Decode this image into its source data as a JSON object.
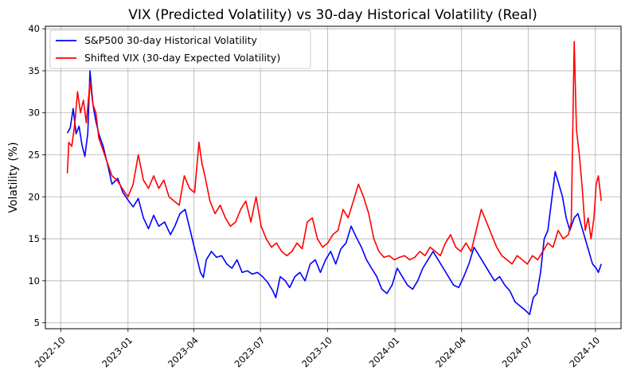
{
  "chart_data": {
    "type": "line",
    "title": "VIX (Predicted Volatility) vs 30-day Historical Volatility (Real)",
    "xlabel": "",
    "ylabel": "Volatility (%)",
    "xlim": [
      "2022-09-10",
      "2024-11-05"
    ],
    "ylim": [
      4.3,
      40.3
    ],
    "grid": true,
    "legend_position": "top-left",
    "x_ticks": [
      "2022-10",
      "2023-01",
      "2023-04",
      "2023-07",
      "2023-10",
      "2024-01",
      "2024-04",
      "2024-07",
      "2024-10"
    ],
    "y_ticks": [
      5,
      10,
      15,
      20,
      25,
      30,
      35,
      40
    ],
    "series": [
      {
        "name": "S&P500 30-day Historical Volatility",
        "color": "#0000ff",
        "points": [
          [
            "2022-10-10",
            27.6
          ],
          [
            "2022-10-14",
            28.2
          ],
          [
            "2022-10-18",
            30.5
          ],
          [
            "2022-10-22",
            27.5
          ],
          [
            "2022-10-26",
            28.4
          ],
          [
            "2022-10-30",
            26.2
          ],
          [
            "2022-11-03",
            24.8
          ],
          [
            "2022-11-07",
            27.6
          ],
          [
            "2022-11-10",
            35.0
          ],
          [
            "2022-11-14",
            31.0
          ],
          [
            "2022-11-18",
            29.0
          ],
          [
            "2022-11-22",
            27.5
          ],
          [
            "2022-11-28",
            26.0
          ],
          [
            "2022-12-05",
            23.5
          ],
          [
            "2022-12-10",
            21.5
          ],
          [
            "2022-12-18",
            22.2
          ],
          [
            "2022-12-25",
            20.5
          ],
          [
            "2023-01-02",
            19.5
          ],
          [
            "2023-01-08",
            18.8
          ],
          [
            "2023-01-15",
            19.8
          ],
          [
            "2023-01-22",
            17.5
          ],
          [
            "2023-01-29",
            16.2
          ],
          [
            "2023-02-05",
            17.8
          ],
          [
            "2023-02-12",
            16.5
          ],
          [
            "2023-02-20",
            17.0
          ],
          [
            "2023-02-28",
            15.5
          ],
          [
            "2023-03-06",
            16.5
          ],
          [
            "2023-03-13",
            18.0
          ],
          [
            "2023-03-20",
            18.5
          ],
          [
            "2023-03-27",
            16.0
          ],
          [
            "2023-04-03",
            13.5
          ],
          [
            "2023-04-10",
            11.0
          ],
          [
            "2023-04-14",
            10.4
          ],
          [
            "2023-04-18",
            12.5
          ],
          [
            "2023-04-25",
            13.5
          ],
          [
            "2023-05-02",
            12.8
          ],
          [
            "2023-05-09",
            13.0
          ],
          [
            "2023-05-16",
            12.0
          ],
          [
            "2023-05-23",
            11.5
          ],
          [
            "2023-05-30",
            12.5
          ],
          [
            "2023-06-06",
            11.0
          ],
          [
            "2023-06-13",
            11.2
          ],
          [
            "2023-06-20",
            10.8
          ],
          [
            "2023-06-27",
            11.0
          ],
          [
            "2023-07-04",
            10.5
          ],
          [
            "2023-07-11",
            9.8
          ],
          [
            "2023-07-18",
            8.8
          ],
          [
            "2023-07-22",
            8.0
          ],
          [
            "2023-07-28",
            10.5
          ],
          [
            "2023-08-04",
            10.0
          ],
          [
            "2023-08-10",
            9.2
          ],
          [
            "2023-08-17",
            10.5
          ],
          [
            "2023-08-24",
            11.0
          ],
          [
            "2023-08-31",
            10.0
          ],
          [
            "2023-09-07",
            12.0
          ],
          [
            "2023-09-14",
            12.5
          ],
          [
            "2023-09-21",
            11.0
          ],
          [
            "2023-09-28",
            12.5
          ],
          [
            "2023-10-05",
            13.5
          ],
          [
            "2023-10-12",
            12.0
          ],
          [
            "2023-10-19",
            13.8
          ],
          [
            "2023-10-26",
            14.5
          ],
          [
            "2023-11-02",
            16.5
          ],
          [
            "2023-11-09",
            15.2
          ],
          [
            "2023-11-16",
            14.0
          ],
          [
            "2023-11-23",
            12.5
          ],
          [
            "2023-11-30",
            11.5
          ],
          [
            "2023-12-07",
            10.5
          ],
          [
            "2023-12-14",
            9.0
          ],
          [
            "2023-12-21",
            8.5
          ],
          [
            "2023-12-28",
            9.5
          ],
          [
            "2024-01-04",
            11.5
          ],
          [
            "2024-01-11",
            10.5
          ],
          [
            "2024-01-18",
            9.5
          ],
          [
            "2024-01-25",
            9.0
          ],
          [
            "2024-02-01",
            10.0
          ],
          [
            "2024-02-08",
            11.5
          ],
          [
            "2024-02-15",
            12.5
          ],
          [
            "2024-02-22",
            13.5
          ],
          [
            "2024-02-29",
            12.5
          ],
          [
            "2024-03-07",
            11.5
          ],
          [
            "2024-03-14",
            10.5
          ],
          [
            "2024-03-21",
            9.5
          ],
          [
            "2024-03-28",
            9.2
          ],
          [
            "2024-04-04",
            10.5
          ],
          [
            "2024-04-11",
            12.0
          ],
          [
            "2024-04-18",
            14.0
          ],
          [
            "2024-04-25",
            13.0
          ],
          [
            "2024-05-02",
            12.0
          ],
          [
            "2024-05-09",
            11.0
          ],
          [
            "2024-05-16",
            10.0
          ],
          [
            "2024-05-23",
            10.5
          ],
          [
            "2024-05-30",
            9.5
          ],
          [
            "2024-06-06",
            8.8
          ],
          [
            "2024-06-13",
            7.5
          ],
          [
            "2024-06-20",
            7.0
          ],
          [
            "2024-06-27",
            6.5
          ],
          [
            "2024-07-03",
            6.0
          ],
          [
            "2024-07-08",
            8.0
          ],
          [
            "2024-07-13",
            8.5
          ],
          [
            "2024-07-18",
            11.0
          ],
          [
            "2024-07-23",
            15.0
          ],
          [
            "2024-07-28",
            16.0
          ],
          [
            "2024-08-02",
            19.5
          ],
          [
            "2024-08-07",
            23.0
          ],
          [
            "2024-08-12",
            21.5
          ],
          [
            "2024-08-17",
            20.0
          ],
          [
            "2024-08-22",
            17.5
          ],
          [
            "2024-08-27",
            16.0
          ],
          [
            "2024-09-02",
            17.5
          ],
          [
            "2024-09-07",
            18.0
          ],
          [
            "2024-09-12",
            16.5
          ],
          [
            "2024-09-17",
            15.0
          ],
          [
            "2024-09-22",
            13.5
          ],
          [
            "2024-09-27",
            12.0
          ],
          [
            "2024-10-02",
            11.5
          ],
          [
            "2024-10-05",
            11.0
          ],
          [
            "2024-10-09",
            12.0
          ]
        ]
      },
      {
        "name": "Shifted VIX (30-day Expected Volatility)",
        "color": "#ff0000",
        "points": [
          [
            "2022-10-10",
            22.8
          ],
          [
            "2022-10-12",
            26.5
          ],
          [
            "2022-10-16",
            26.0
          ],
          [
            "2022-10-20",
            28.5
          ],
          [
            "2022-10-24",
            32.5
          ],
          [
            "2022-10-28",
            30.0
          ],
          [
            "2022-11-01",
            31.5
          ],
          [
            "2022-11-05",
            28.8
          ],
          [
            "2022-11-10",
            33.7
          ],
          [
            "2022-11-14",
            31.0
          ],
          [
            "2022-11-18",
            30.0
          ],
          [
            "2022-11-22",
            27.0
          ],
          [
            "2022-11-28",
            25.5
          ],
          [
            "2022-12-04",
            24.0
          ],
          [
            "2022-12-10",
            22.5
          ],
          [
            "2022-12-17",
            22.0
          ],
          [
            "2022-12-24",
            21.0
          ],
          [
            "2023-01-01",
            20.0
          ],
          [
            "2023-01-08",
            21.5
          ],
          [
            "2023-01-15",
            25.0
          ],
          [
            "2023-01-22",
            22.0
          ],
          [
            "2023-01-29",
            21.0
          ],
          [
            "2023-02-05",
            22.5
          ],
          [
            "2023-02-12",
            21.0
          ],
          [
            "2023-02-19",
            22.0
          ],
          [
            "2023-02-26",
            20.0
          ],
          [
            "2023-03-05",
            19.5
          ],
          [
            "2023-03-12",
            19.0
          ],
          [
            "2023-03-19",
            22.5
          ],
          [
            "2023-03-26",
            21.0
          ],
          [
            "2023-04-02",
            20.5
          ],
          [
            "2023-04-08",
            26.5
          ],
          [
            "2023-04-12",
            24.0
          ],
          [
            "2023-04-16",
            22.5
          ],
          [
            "2023-04-23",
            19.5
          ],
          [
            "2023-04-30",
            18.0
          ],
          [
            "2023-05-07",
            19.0
          ],
          [
            "2023-05-14",
            17.5
          ],
          [
            "2023-05-21",
            16.5
          ],
          [
            "2023-05-28",
            17.0
          ],
          [
            "2023-06-04",
            18.5
          ],
          [
            "2023-06-11",
            19.5
          ],
          [
            "2023-06-18",
            17.0
          ],
          [
            "2023-06-25",
            20.0
          ],
          [
            "2023-07-02",
            16.5
          ],
          [
            "2023-07-09",
            15.0
          ],
          [
            "2023-07-16",
            14.0
          ],
          [
            "2023-07-23",
            14.5
          ],
          [
            "2023-07-30",
            13.5
          ],
          [
            "2023-08-06",
            13.0
          ],
          [
            "2023-08-13",
            13.5
          ],
          [
            "2023-08-20",
            14.5
          ],
          [
            "2023-08-27",
            13.8
          ],
          [
            "2023-09-03",
            17.0
          ],
          [
            "2023-09-10",
            17.5
          ],
          [
            "2023-09-17",
            15.0
          ],
          [
            "2023-09-24",
            14.0
          ],
          [
            "2023-10-01",
            14.5
          ],
          [
            "2023-10-08",
            15.5
          ],
          [
            "2023-10-15",
            16.0
          ],
          [
            "2023-10-22",
            18.5
          ],
          [
            "2023-10-29",
            17.5
          ],
          [
            "2023-11-05",
            19.5
          ],
          [
            "2023-11-12",
            21.5
          ],
          [
            "2023-11-19",
            20.0
          ],
          [
            "2023-11-26",
            18.0
          ],
          [
            "2023-12-03",
            15.0
          ],
          [
            "2023-12-10",
            13.5
          ],
          [
            "2023-12-17",
            12.8
          ],
          [
            "2023-12-24",
            13.0
          ],
          [
            "2023-12-31",
            12.5
          ],
          [
            "2024-01-07",
            12.8
          ],
          [
            "2024-01-14",
            13.0
          ],
          [
            "2024-01-21",
            12.5
          ],
          [
            "2024-01-28",
            12.8
          ],
          [
            "2024-02-04",
            13.5
          ],
          [
            "2024-02-11",
            13.0
          ],
          [
            "2024-02-18",
            14.0
          ],
          [
            "2024-02-25",
            13.5
          ],
          [
            "2024-03-03",
            13.0
          ],
          [
            "2024-03-10",
            14.5
          ],
          [
            "2024-03-17",
            15.5
          ],
          [
            "2024-03-24",
            14.0
          ],
          [
            "2024-03-31",
            13.5
          ],
          [
            "2024-04-07",
            14.5
          ],
          [
            "2024-04-14",
            13.5
          ],
          [
            "2024-04-21",
            16.0
          ],
          [
            "2024-04-28",
            18.5
          ],
          [
            "2024-05-05",
            17.0
          ],
          [
            "2024-05-12",
            15.5
          ],
          [
            "2024-05-19",
            14.0
          ],
          [
            "2024-05-26",
            13.0
          ],
          [
            "2024-06-02",
            12.5
          ],
          [
            "2024-06-09",
            12.0
          ],
          [
            "2024-06-16",
            13.0
          ],
          [
            "2024-06-23",
            12.5
          ],
          [
            "2024-06-30",
            12.0
          ],
          [
            "2024-07-07",
            13.0
          ],
          [
            "2024-07-14",
            12.5
          ],
          [
            "2024-07-21",
            13.5
          ],
          [
            "2024-07-28",
            14.5
          ],
          [
            "2024-08-04",
            14.0
          ],
          [
            "2024-08-11",
            16.0
          ],
          [
            "2024-08-18",
            15.0
          ],
          [
            "2024-08-25",
            15.5
          ],
          [
            "2024-08-29",
            17.0
          ],
          [
            "2024-09-02",
            38.5
          ],
          [
            "2024-09-05",
            28.0
          ],
          [
            "2024-09-09",
            25.0
          ],
          [
            "2024-09-13",
            21.0
          ],
          [
            "2024-09-17",
            16.0
          ],
          [
            "2024-09-21",
            17.5
          ],
          [
            "2024-09-25",
            15.0
          ],
          [
            "2024-09-29",
            17.5
          ],
          [
            "2024-10-02",
            21.5
          ],
          [
            "2024-10-05",
            22.5
          ],
          [
            "2024-10-09",
            19.5
          ]
        ]
      }
    ]
  }
}
